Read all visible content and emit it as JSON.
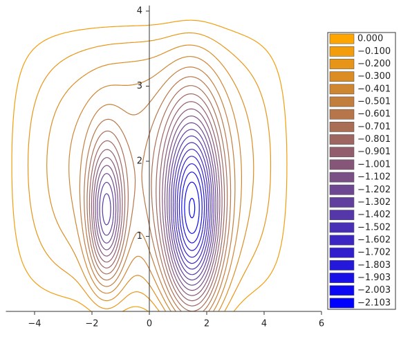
{
  "chart_data": {
    "type": "contour",
    "xlim": [
      -5,
      6
    ],
    "ylim": [
      0,
      4
    ],
    "xticks": [
      {
        "value": -4,
        "label": "−4"
      },
      {
        "value": -2,
        "label": "−2"
      },
      0,
      2,
      4,
      6
    ],
    "yticks": [
      1,
      2,
      3,
      4
    ],
    "levels": [
      {
        "value": 0,
        "label": "0.000"
      },
      {
        "value": -0.1,
        "label": "−0.100"
      },
      {
        "value": -0.2,
        "label": "−0.200"
      },
      {
        "value": -0.3,
        "label": "−0.300"
      },
      {
        "value": -0.401,
        "label": "−0.401"
      },
      {
        "value": -0.501,
        "label": "−0.501"
      },
      {
        "value": -0.601,
        "label": "−0.601"
      },
      {
        "value": -0.701,
        "label": "−0.701"
      },
      {
        "value": -0.801,
        "label": "−0.801"
      },
      {
        "value": -0.901,
        "label": "−0.901"
      },
      {
        "value": -1.001,
        "label": "−1.001"
      },
      {
        "value": -1.102,
        "label": "−1.102"
      },
      {
        "value": -1.202,
        "label": "−1.202"
      },
      {
        "value": -1.302,
        "label": "−1.302"
      },
      {
        "value": -1.402,
        "label": "−1.402"
      },
      {
        "value": -1.502,
        "label": "−1.502"
      },
      {
        "value": -1.602,
        "label": "−1.602"
      },
      {
        "value": -1.702,
        "label": "−1.702"
      },
      {
        "value": -1.803,
        "label": "−1.803"
      },
      {
        "value": -1.903,
        "label": "−1.903"
      },
      {
        "value": -2.003,
        "label": "−2.003"
      },
      {
        "value": -2.103,
        "label": "−2.103"
      }
    ],
    "colors": [
      "#ffa500",
      "#f39d0c",
      "#e79518",
      "#db8d24",
      "#ce8631",
      "#c27e3d",
      "#b67649",
      "#aa6e55",
      "#9e6661",
      "#925e6d",
      "#865679",
      "#794f86",
      "#6d4792",
      "#613f9e",
      "#5537aa",
      "#492fb6",
      "#3d27c2",
      "#311fce",
      "#2418db",
      "#1810e7",
      "#0c08f3",
      "#0000ff"
    ]
  }
}
